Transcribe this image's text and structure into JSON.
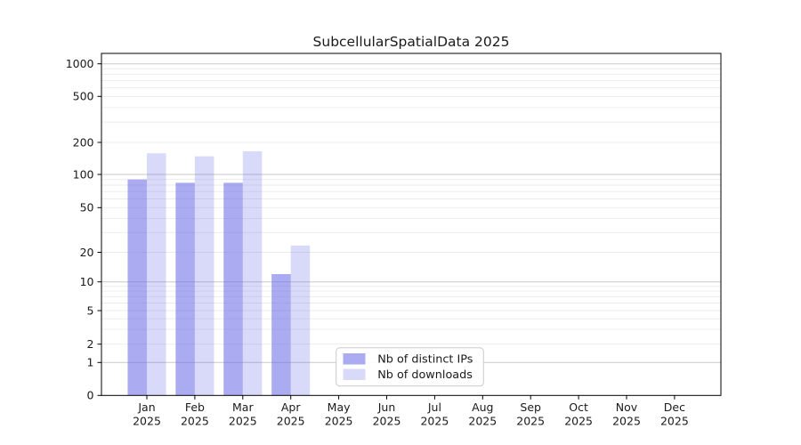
{
  "chart_data": {
    "type": "bar",
    "title": "SubcellularSpatialData 2025",
    "categories": [
      "Jan",
      "Feb",
      "Mar",
      "Apr",
      "May",
      "Jun",
      "Jul",
      "Aug",
      "Sep",
      "Oct",
      "Nov",
      "Dec"
    ],
    "year_label": "2025",
    "series": [
      {
        "name": "Nb of distinct IPs",
        "color": "#6666e6",
        "alpha": 0.55,
        "values": [
          90,
          84,
          84,
          12,
          0,
          0,
          0,
          0,
          0,
          0,
          0,
          0
        ]
      },
      {
        "name": "Nb of downloads",
        "color": "#6666e6",
        "alpha": 0.25,
        "values": [
          158,
          148,
          165,
          23,
          0,
          0,
          0,
          0,
          0,
          0,
          0,
          0
        ]
      }
    ],
    "xlabel": "",
    "ylabel": "",
    "yscale": "symlog",
    "yticks": [
      0,
      1,
      2,
      5,
      10,
      20,
      50,
      100,
      200,
      500,
      1000
    ],
    "ylim": [
      0,
      1250
    ],
    "grid": "horizontal major+minor",
    "legend_position": "inside lower-center"
  },
  "colors": {
    "background": "#ffffff",
    "bar_base": "#6666e6",
    "grid_minor": "#ebebeb",
    "grid_major": "#c9c9c9",
    "axis": "#000000",
    "text": "#1a1a1a",
    "legend_border": "#cbcbcb",
    "legend_fill": "#ffffff"
  }
}
